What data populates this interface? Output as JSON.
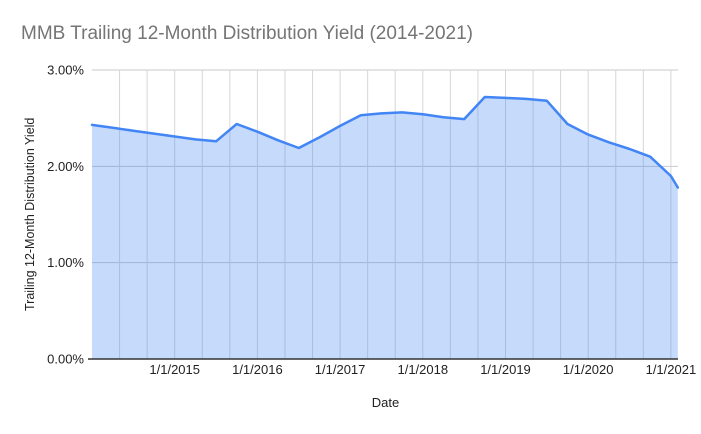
{
  "title": "MMB Trailing 12-Month Distribution Yield (2014-2021)",
  "axes": {
    "x_title": "Date",
    "y_title": "Trailing 12-Month Distribution Yield"
  },
  "chart_data": {
    "type": "area",
    "title": "MMB Trailing 12-Month Distribution Yield (2014-2021)",
    "xlabel": "Date",
    "ylabel": "Trailing 12-Month Distribution Yield",
    "legend": "none",
    "grid": true,
    "ylim": [
      0,
      3
    ],
    "y_ticks": [
      {
        "label": "3.00%",
        "value": 3
      },
      {
        "label": "2.00%",
        "value": 2
      },
      {
        "label": "1.00%",
        "value": 1
      },
      {
        "label": "0.00%",
        "value": 0
      }
    ],
    "x_ticks": [
      {
        "label": "1/1/2015",
        "t": 2015
      },
      {
        "label": "1/1/2016",
        "t": 2016
      },
      {
        "label": "1/1/2017",
        "t": 2017
      },
      {
        "label": "1/1/2018",
        "t": 2018
      },
      {
        "label": "1/1/2019",
        "t": 2019
      },
      {
        "label": "1/1/2020",
        "t": 2020
      },
      {
        "label": "1/1/2021",
        "t": 2021
      }
    ],
    "x_minor_grid_step_years": 0.33333,
    "series": [
      {
        "name": "Trailing 12-Month Distribution Yield",
        "points": [
          {
            "date": "1/1/2014",
            "value": 2.43
          },
          {
            "date": "4/1/2014",
            "value": 2.4
          },
          {
            "date": "7/1/2014",
            "value": 2.37
          },
          {
            "date": "10/1/2014",
            "value": 2.34
          },
          {
            "date": "1/1/2015",
            "value": 2.31
          },
          {
            "date": "4/1/2015",
            "value": 2.28
          },
          {
            "date": "7/1/2015",
            "value": 2.26
          },
          {
            "date": "10/1/2015",
            "value": 2.44
          },
          {
            "date": "1/1/2016",
            "value": 2.36
          },
          {
            "date": "4/1/2016",
            "value": 2.27
          },
          {
            "date": "7/1/2016",
            "value": 2.19
          },
          {
            "date": "10/1/2016",
            "value": 2.3
          },
          {
            "date": "1/1/2017",
            "value": 2.42
          },
          {
            "date": "4/1/2017",
            "value": 2.53
          },
          {
            "date": "7/1/2017",
            "value": 2.55
          },
          {
            "date": "10/1/2017",
            "value": 2.56
          },
          {
            "date": "1/1/2018",
            "value": 2.54
          },
          {
            "date": "4/1/2018",
            "value": 2.51
          },
          {
            "date": "7/1/2018",
            "value": 2.49
          },
          {
            "date": "10/1/2018",
            "value": 2.72
          },
          {
            "date": "1/1/2019",
            "value": 2.71
          },
          {
            "date": "4/1/2019",
            "value": 2.7
          },
          {
            "date": "7/1/2019",
            "value": 2.68
          },
          {
            "date": "10/1/2019",
            "value": 2.44
          },
          {
            "date": "1/1/2020",
            "value": 2.33
          },
          {
            "date": "4/1/2020",
            "value": 2.25
          },
          {
            "date": "7/1/2020",
            "value": 2.18
          },
          {
            "date": "10/1/2020",
            "value": 2.1
          },
          {
            "date": "1/1/2021",
            "value": 1.9
          },
          {
            "date": "2/1/2021",
            "value": 1.78
          }
        ]
      }
    ],
    "colors": {
      "line": "#4285f4",
      "fill": "rgba(66,133,244,0.30)",
      "h_gridline": "#c9c9c9",
      "v_gridline": "#d6d6d6",
      "axis_line": "#333333",
      "tick_label": "#222222",
      "title": "#757575"
    }
  }
}
